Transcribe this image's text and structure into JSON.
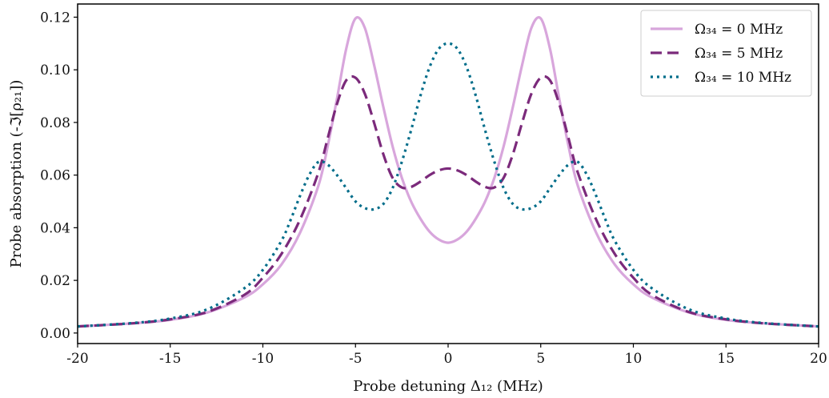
{
  "chart_data": {
    "type": "line",
    "xlabel": "Probe detuning Δ₁₂ (MHz)",
    "ylabel": "Probe absorption (-ℑ[ρ₂₁])",
    "xlim": [
      -20,
      20
    ],
    "ylim": [
      -0.004,
      0.125
    ],
    "x_ticks": [
      -20,
      -15,
      -10,
      -5,
      0,
      5,
      10,
      15,
      20
    ],
    "x_tick_labels": [
      "-20",
      "-15",
      "-10",
      "-5",
      "0",
      "5",
      "10",
      "15",
      "20"
    ],
    "y_ticks": [
      0.0,
      0.02,
      0.04,
      0.06,
      0.08,
      0.1,
      0.12
    ],
    "y_tick_labels": [
      "0.00",
      "0.02",
      "0.04",
      "0.06",
      "0.08",
      "0.10",
      "0.12"
    ],
    "grid": false,
    "legend_position": "top-right",
    "series": [
      {
        "name": "Ω₃₄ = 0 MHz",
        "color": "#d8a6dc",
        "style": "solid",
        "x": [
          -20,
          -17,
          -15,
          -13,
          -11,
          -10,
          -9,
          -8,
          -7,
          -6.5,
          -6,
          -5.5,
          -5,
          -4.5,
          -4,
          -3.5,
          -3,
          -2.5,
          -2,
          -1.5,
          -1,
          -0.5,
          0,
          0.5,
          1,
          1.5,
          2,
          2.5,
          3,
          3.5,
          4,
          4.5,
          5,
          5.5,
          6,
          6.5,
          7,
          8,
          9,
          10,
          11,
          13,
          15,
          17,
          20
        ],
        "y": [
          0.0025,
          0.0037,
          0.005,
          0.0078,
          0.0135,
          0.0185,
          0.026,
          0.038,
          0.056,
          0.071,
          0.089,
          0.108,
          0.1195,
          0.116,
          0.102,
          0.086,
          0.071,
          0.059,
          0.05,
          0.0435,
          0.0385,
          0.0355,
          0.0343,
          0.0355,
          0.0385,
          0.0435,
          0.05,
          0.059,
          0.071,
          0.086,
          0.102,
          0.116,
          0.1195,
          0.108,
          0.089,
          0.071,
          0.056,
          0.038,
          0.026,
          0.0185,
          0.0135,
          0.0078,
          0.005,
          0.0037,
          0.0025
        ]
      },
      {
        "name": "Ω₃₄ = 5 MHz",
        "color": "#7b2a7b",
        "style": "dashed",
        "x": [
          -20,
          -17,
          -15,
          -13,
          -11,
          -10,
          -9,
          -8,
          -7,
          -6.5,
          -6,
          -5.5,
          -5,
          -4.5,
          -4,
          -3.5,
          -3,
          -2.5,
          -2,
          -1.5,
          -1,
          -0.5,
          0,
          0.5,
          1,
          1.5,
          2,
          2.5,
          3,
          3.5,
          4,
          4.5,
          5,
          5.5,
          6,
          6.5,
          7,
          8,
          9,
          10,
          11,
          13,
          15,
          17,
          20
        ],
        "y": [
          0.0025,
          0.0037,
          0.0052,
          0.008,
          0.0145,
          0.021,
          0.03,
          0.043,
          0.061,
          0.074,
          0.087,
          0.096,
          0.097,
          0.091,
          0.08,
          0.068,
          0.059,
          0.0553,
          0.0555,
          0.0575,
          0.06,
          0.0618,
          0.0625,
          0.0618,
          0.06,
          0.0575,
          0.0555,
          0.0553,
          0.059,
          0.068,
          0.08,
          0.091,
          0.097,
          0.096,
          0.087,
          0.074,
          0.061,
          0.043,
          0.03,
          0.021,
          0.0145,
          0.008,
          0.0052,
          0.0037,
          0.0025
        ]
      },
      {
        "name": "Ω₃₄ = 10 MHz",
        "color": "#006d8a",
        "style": "dotted",
        "x": [
          -20,
          -17,
          -15,
          -13,
          -11,
          -10,
          -9,
          -8.5,
          -8,
          -7.5,
          -7,
          -6.5,
          -6,
          -5.5,
          -5,
          -4.5,
          -4,
          -3.5,
          -3,
          -2.5,
          -2,
          -1.5,
          -1,
          -0.5,
          0,
          0.5,
          1,
          1.5,
          2,
          2.5,
          3,
          3.5,
          4,
          4.5,
          5,
          5.5,
          6,
          6.5,
          7,
          7.5,
          8,
          8.5,
          9,
          10,
          11,
          13,
          15,
          17,
          20
        ],
        "y": [
          0.0025,
          0.0038,
          0.0055,
          0.009,
          0.017,
          0.024,
          0.035,
          0.043,
          0.052,
          0.06,
          0.065,
          0.064,
          0.06,
          0.055,
          0.05,
          0.0475,
          0.047,
          0.049,
          0.055,
          0.065,
          0.077,
          0.09,
          0.101,
          0.108,
          0.11,
          0.108,
          0.101,
          0.09,
          0.077,
          0.065,
          0.055,
          0.049,
          0.047,
          0.0475,
          0.05,
          0.055,
          0.06,
          0.064,
          0.065,
          0.06,
          0.052,
          0.043,
          0.035,
          0.024,
          0.017,
          0.009,
          0.0055,
          0.0038,
          0.0025
        ]
      }
    ]
  }
}
